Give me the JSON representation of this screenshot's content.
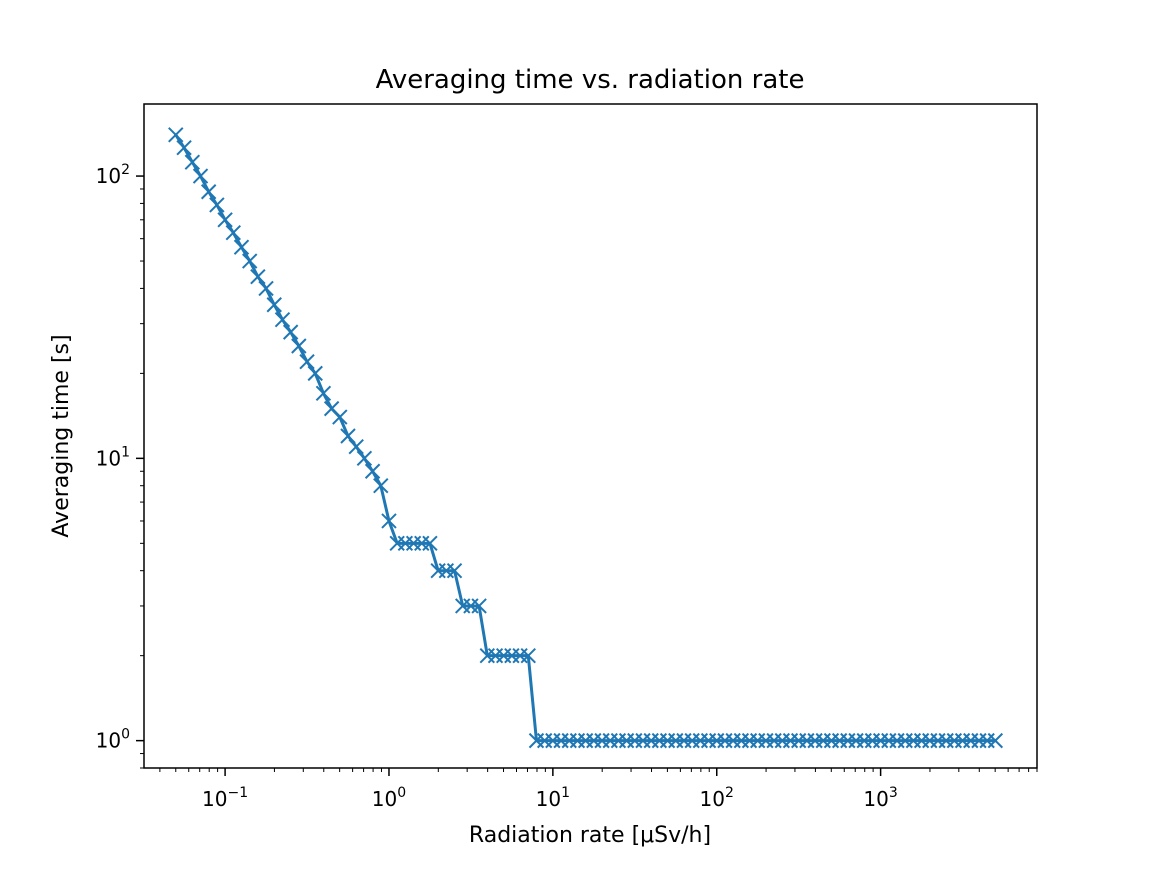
{
  "chart_data": {
    "type": "line",
    "title": "Averaging time vs. radiation rate",
    "xlabel": "Radiation rate [μSv/h]",
    "ylabel": "Averaging time [s]",
    "xscale": "log",
    "yscale": "log",
    "xlim": [
      0.032,
      9000
    ],
    "ylim": [
      0.8,
      180
    ],
    "grid": false,
    "marker": "x",
    "color": "#1f77b4",
    "x_ticks": [
      {
        "base": "10",
        "exp": "−1"
      },
      {
        "base": "10",
        "exp": "0"
      },
      {
        "base": "10",
        "exp": "1"
      },
      {
        "base": "10",
        "exp": "2"
      },
      {
        "base": "10",
        "exp": "3"
      }
    ],
    "y_ticks": [
      {
        "base": "10",
        "exp": "0"
      },
      {
        "base": "10",
        "exp": "1"
      },
      {
        "base": "10",
        "exp": "2"
      }
    ],
    "series": [
      {
        "x": [
          0.05,
          0.0562,
          0.0631,
          0.0708,
          0.0794,
          0.0891,
          0.1,
          0.1122,
          0.1259,
          0.1413,
          0.1585,
          0.1778,
          0.1995,
          0.2239,
          0.2512,
          0.2818,
          0.3162,
          0.3548,
          0.3981,
          0.4467,
          0.5012,
          0.5623,
          0.631,
          0.7079,
          0.7943,
          0.8913,
          1.0,
          1.122,
          1.259,
          1.413,
          1.585,
          1.778,
          1.995,
          2.239,
          2.512,
          2.818,
          3.162,
          3.548,
          3.981,
          4.467,
          5.012,
          5.623,
          6.31,
          7.079,
          7.943,
          8.913,
          10.0,
          11.22,
          12.59,
          14.13,
          15.85,
          17.78,
          19.95,
          22.39,
          25.12,
          28.18,
          31.62,
          35.48,
          39.81,
          44.67,
          50.12,
          56.23,
          63.1,
          70.79,
          79.43,
          89.13,
          100.0,
          112.2,
          125.9,
          141.3,
          158.5,
          177.8,
          199.5,
          223.9,
          251.2,
          281.8,
          316.2,
          354.8,
          398.1,
          446.7,
          501.2,
          562.3,
          631.0,
          707.9,
          794.3,
          891.3,
          1000,
          1122,
          1259,
          1413,
          1585,
          1778,
          1995,
          2239,
          2512,
          2818,
          3162,
          3548,
          3981,
          4467,
          5012
        ],
        "y": [
          140,
          126,
          112,
          100,
          88,
          79,
          70,
          63,
          56,
          50,
          44,
          40,
          35,
          31,
          28,
          25,
          22,
          20,
          17,
          15,
          14,
          12,
          11,
          10,
          9,
          8,
          6,
          5,
          5,
          5,
          5,
          5,
          4,
          4,
          4,
          3,
          3,
          3,
          2,
          2,
          2,
          2,
          2,
          2,
          1,
          1,
          1,
          1,
          1,
          1,
          1,
          1,
          1,
          1,
          1,
          1,
          1,
          1,
          1,
          1,
          1,
          1,
          1,
          1,
          1,
          1,
          1,
          1,
          1,
          1,
          1,
          1,
          1,
          1,
          1,
          1,
          1,
          1,
          1,
          1,
          1,
          1,
          1,
          1,
          1,
          1,
          1,
          1,
          1,
          1,
          1,
          1,
          1,
          1,
          1,
          1,
          1,
          1,
          1,
          1,
          1
        ]
      }
    ]
  }
}
